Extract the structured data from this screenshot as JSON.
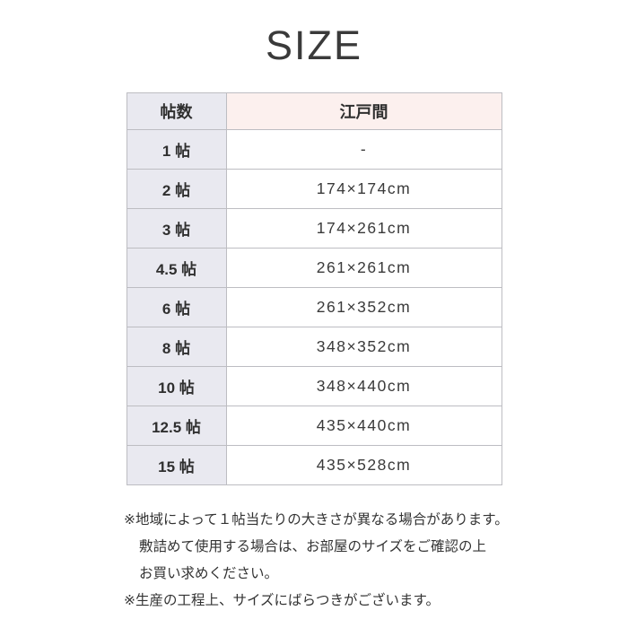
{
  "page": {
    "title": "SIZE"
  },
  "colors": {
    "edoma_header_bg": "#fcf0ee",
    "size_column_bg": "#e9e9f0",
    "table_border": "#bdbdc2",
    "text": "#333333",
    "page_bg": "#ffffff"
  },
  "chart_data": {
    "type": "table",
    "title": "SIZE",
    "columns": [
      "帖数",
      "江戸間"
    ],
    "rows": [
      [
        "1 帖",
        "-"
      ],
      [
        "2 帖",
        "174×174cm"
      ],
      [
        "3 帖",
        "174×261cm"
      ],
      [
        "4.5 帖",
        "261×261cm"
      ],
      [
        "6 帖",
        "261×352cm"
      ],
      [
        "8 帖",
        "348×352cm"
      ],
      [
        "10 帖",
        "348×440cm"
      ],
      [
        "12.5 帖",
        "435×440cm"
      ],
      [
        "15 帖",
        "435×528cm"
      ]
    ],
    "notes": [
      "※地域によって１帖当たりの大きさが異なる場合があります。",
      "敷詰めて使用する場合は、お部屋のサイズをご確認の上",
      "お買い求めください。",
      "※生産の工程上、サイズにばらつきがございます。"
    ]
  }
}
